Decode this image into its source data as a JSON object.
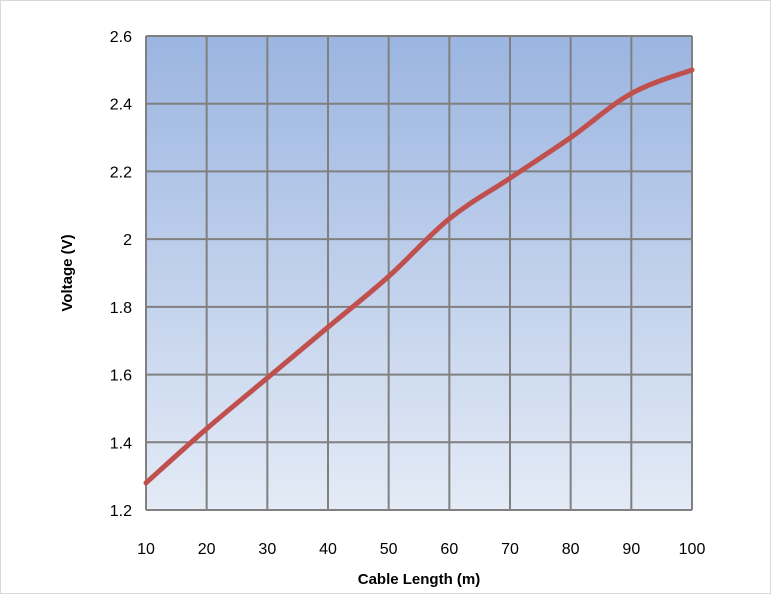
{
  "chart_data": {
    "type": "line",
    "xlabel": "Cable Length (m)",
    "ylabel": "Voltage (V)",
    "xlim": [
      10,
      100
    ],
    "ylim": [
      1.2,
      2.6
    ],
    "x_ticks": [
      "10",
      "20",
      "30",
      "40",
      "50",
      "60",
      "70",
      "80",
      "90",
      "100"
    ],
    "y_ticks": [
      "1.2",
      "1.4",
      "1.6",
      "1.8",
      "2",
      "2.2",
      "2.4",
      "2.6"
    ],
    "grid": true,
    "series": [
      {
        "x": [
          10,
          20,
          30,
          40,
          50,
          60,
          70,
          80,
          90,
          100
        ],
        "values": [
          1.28,
          1.44,
          1.59,
          1.74,
          1.89,
          2.06,
          2.18,
          2.3,
          2.43,
          2.5
        ]
      }
    ],
    "colors": {
      "line": "#c0504d",
      "grid": "#808080",
      "fill_top": "#9bb5e1",
      "fill_bottom": "#e4ebf6"
    }
  }
}
